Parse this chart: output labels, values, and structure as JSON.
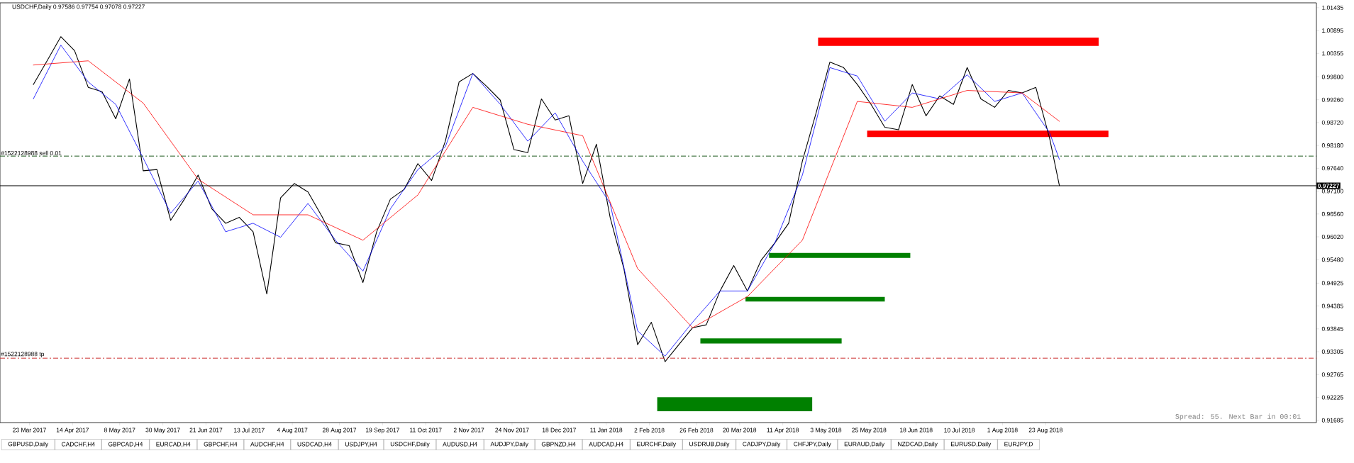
{
  "chart_data": {
    "type": "line",
    "title": "USDCHF,Daily  0.97586 0.97754 0.97078 0.97227",
    "xlim": [
      "2017-03-08",
      "2019-01-08"
    ],
    "xticks": [
      {
        "value": "2017-03-23",
        "label": "23 Mar 2017"
      },
      {
        "value": "2017-04-14",
        "label": "14 Apr 2017"
      },
      {
        "value": "2017-05-08",
        "label": "8 May 2017"
      },
      {
        "value": "2017-05-30",
        "label": "30 May 2017"
      },
      {
        "value": "2017-06-21",
        "label": "21 Jun 2017"
      },
      {
        "value": "2017-07-13",
        "label": "13 Jul 2017"
      },
      {
        "value": "2017-08-04",
        "label": "4 Aug 2017"
      },
      {
        "value": "2017-08-28",
        "label": "28 Aug 2017"
      },
      {
        "value": "2017-09-19",
        "label": "19 Sep 2017"
      },
      {
        "value": "2017-10-11",
        "label": "11 Oct 2017"
      },
      {
        "value": "2017-11-02",
        "label": "2 Nov 2017"
      },
      {
        "value": "2017-11-24",
        "label": "24 Nov 2017"
      },
      {
        "value": "2017-12-18",
        "label": "18 Dec 2017"
      },
      {
        "value": "2018-01-11",
        "label": "11 Jan 2018"
      },
      {
        "value": "2018-02-02",
        "label": "2 Feb 2018"
      },
      {
        "value": "2018-02-26",
        "label": "26 Feb 2018"
      },
      {
        "value": "2018-03-20",
        "label": "20 Mar 2018"
      },
      {
        "value": "2018-04-11",
        "label": "11 Apr 2018"
      },
      {
        "value": "2018-05-03",
        "label": "3 May 2018"
      },
      {
        "value": "2018-05-25",
        "label": "25 May 2018"
      },
      {
        "value": "2018-06-18",
        "label": "18 Jun 2018"
      },
      {
        "value": "2018-07-10",
        "label": "10 Jul 2018"
      },
      {
        "value": "2018-08-01",
        "label": "1 Aug 2018"
      },
      {
        "value": "2018-08-23",
        "label": "23 Aug 2018"
      }
    ],
    "ylim": [
      0.9163,
      1.0155
    ],
    "yticks": [
      1.01435,
      1.00895,
      1.00355,
      {
        "value": 0.998,
        "label": "0.99800"
      },
      {
        "value": 0.9926,
        "label": "0.99260"
      },
      {
        "value": 0.9872,
        "label": "0.98720"
      },
      {
        "value": 0.9818,
        "label": "0.98180"
      },
      {
        "value": 0.9764,
        "label": "0.97640"
      },
      {
        "value": 0.971,
        "label": "0.97100"
      },
      {
        "value": 0.9656,
        "label": "0.96560"
      },
      {
        "value": 0.9602,
        "label": "0.96020"
      },
      {
        "value": 0.9548,
        "label": "0.95480"
      },
      0.94925,
      0.94385,
      0.93845,
      0.93305,
      0.92765,
      0.92225,
      0.91685
    ],
    "series": [
      {
        "color": "#000000",
        "x": [
          "2017-03-25",
          "2017-04-01",
          "2017-04-08",
          "2017-04-15",
          "2017-04-22",
          "2017-04-29",
          "2017-05-06",
          "2017-05-13",
          "2017-05-20",
          "2017-05-27",
          "2017-06-03",
          "2017-06-10",
          "2017-06-17",
          "2017-06-24",
          "2017-07-01",
          "2017-07-08",
          "2017-07-15",
          "2017-07-22",
          "2017-07-29",
          "2017-08-05",
          "2017-08-12",
          "2017-08-19",
          "2017-08-26",
          "2017-09-02",
          "2017-09-09",
          "2017-09-16",
          "2017-09-23",
          "2017-09-30",
          "2017-10-07",
          "2017-10-14",
          "2017-10-21",
          "2017-10-28",
          "2017-11-04",
          "2017-11-11",
          "2017-11-18",
          "2017-11-25",
          "2017-12-02",
          "2017-12-09",
          "2017-12-16",
          "2017-12-23",
          "2017-12-30",
          "2018-01-06",
          "2018-01-13",
          "2018-01-20",
          "2018-01-27",
          "2018-02-03",
          "2018-02-10",
          "2018-02-17",
          "2018-02-24",
          "2018-03-03",
          "2018-03-10",
          "2018-03-17",
          "2018-03-24",
          "2018-03-31",
          "2018-04-07",
          "2018-04-14",
          "2018-04-21",
          "2018-04-28",
          "2018-05-05",
          "2018-05-12",
          "2018-05-19",
          "2018-05-26",
          "2018-06-02",
          "2018-06-09",
          "2018-06-16",
          "2018-06-23",
          "2018-06-30",
          "2018-07-07",
          "2018-07-14",
          "2018-07-21",
          "2018-07-28",
          "2018-08-04",
          "2018-08-11",
          "2018-08-18",
          "2018-08-25",
          "2018-08-30"
        ],
        "values": [
          0.9962,
          1.0018,
          1.0075,
          1.0042,
          0.9955,
          0.9945,
          0.9881,
          0.9975,
          0.9758,
          0.9761,
          0.9641,
          0.9691,
          0.9748,
          0.9668,
          0.9634,
          0.9648,
          0.9614,
          0.9467,
          0.9694,
          0.9728,
          0.9708,
          0.9651,
          0.9588,
          0.9581,
          0.9494,
          0.9614,
          0.9691,
          0.9714,
          0.9775,
          0.9735,
          0.9828,
          0.9968,
          0.9988,
          0.9958,
          0.9925,
          0.9808,
          0.9801,
          0.9928,
          0.9878,
          0.9888,
          0.9728,
          0.9821,
          0.9648,
          0.9527,
          0.9347,
          0.94,
          0.9307,
          0.9347,
          0.9387,
          0.9394,
          0.9474,
          0.9534,
          0.9474,
          0.9547,
          0.9588,
          0.9634,
          0.9781,
          0.9895,
          1.0015,
          1.0002,
          0.9962,
          0.9915,
          0.9861,
          0.9855,
          0.9962,
          0.9888,
          0.9935,
          0.9915,
          1.0002,
          0.9928,
          0.9908,
          0.9948,
          0.9942,
          0.9955,
          0.9835,
          0.9723
        ]
      },
      {
        "color": "#0000ff",
        "x": [
          "2017-03-25",
          "2017-04-08",
          "2017-04-22",
          "2017-05-06",
          "2017-05-20",
          "2017-06-03",
          "2017-06-17",
          "2017-07-01",
          "2017-07-15",
          "2017-07-29",
          "2017-08-12",
          "2017-08-26",
          "2017-09-09",
          "2017-09-23",
          "2017-10-07",
          "2017-10-21",
          "2017-11-04",
          "2017-11-18",
          "2017-12-02",
          "2017-12-16",
          "2017-12-30",
          "2018-01-13",
          "2018-01-27",
          "2018-02-10",
          "2018-02-24",
          "2018-03-10",
          "2018-03-24",
          "2018-04-07",
          "2018-04-21",
          "2018-05-05",
          "2018-05-19",
          "2018-06-02",
          "2018-06-16",
          "2018-06-30",
          "2018-07-14",
          "2018-07-28",
          "2018-08-11",
          "2018-08-25",
          "2018-08-30"
        ],
        "values": [
          0.9928,
          1.0055,
          0.9968,
          0.9915,
          0.9788,
          0.9658,
          0.9734,
          0.9614,
          0.9634,
          0.9601,
          0.9681,
          0.9594,
          0.9521,
          0.9668,
          0.9761,
          0.9815,
          0.9988,
          0.9915,
          0.9828,
          0.9895,
          0.9781,
          0.9681,
          0.938,
          0.932,
          0.94,
          0.9474,
          0.9474,
          0.9588,
          0.9748,
          1.0002,
          0.9982,
          0.9875,
          0.9942,
          0.9928,
          0.9985,
          0.9922,
          0.9942,
          0.9848,
          0.9785
        ]
      },
      {
        "color": "#ff0000",
        "x": [
          "2017-03-25",
          "2017-04-22",
          "2017-05-20",
          "2017-06-17",
          "2017-07-15",
          "2017-08-12",
          "2017-09-09",
          "2017-10-07",
          "2017-11-04",
          "2017-12-02",
          "2017-12-30",
          "2018-01-27",
          "2018-02-24",
          "2018-03-24",
          "2018-04-21",
          "2018-05-19",
          "2018-06-16",
          "2018-07-14",
          "2018-08-11",
          "2018-08-30"
        ],
        "values": [
          1.0008,
          1.0018,
          0.9918,
          0.9738,
          0.9654,
          0.9654,
          0.9594,
          0.9701,
          0.9908,
          0.9868,
          0.9841,
          0.9527,
          0.9387,
          0.9461,
          0.9594,
          0.9922,
          0.9908,
          0.9948,
          0.9942,
          0.9875
        ]
      },
      {
        "color": "#ff0000",
        "x": [
          "2018-04-29",
          "2018-09-19"
        ],
        "values": [
          null,
          null
        ],
        "lower": [
          1.0053,
          1.0053
        ],
        "upper": [
          1.0073,
          1.0073
        ]
      },
      {
        "color": "#ff0000",
        "x": [
          "2018-05-24",
          "2018-09-24"
        ],
        "values": [
          null,
          null
        ],
        "lower": [
          0.9838,
          0.9838
        ],
        "upper": [
          0.9853,
          0.9853
        ]
      },
      {
        "color": "#008000",
        "x": [
          "2018-04-04",
          "2018-06-15"
        ],
        "values": [
          null,
          null
        ],
        "lower": [
          0.9552,
          0.9552
        ],
        "upper": [
          0.9564,
          0.9564
        ]
      },
      {
        "color": "#008000",
        "x": [
          "2018-03-23",
          "2018-06-02"
        ],
        "values": [
          null,
          null
        ],
        "lower": [
          0.9449,
          0.9449
        ],
        "upper": [
          0.946,
          0.946
        ]
      },
      {
        "color": "#008000",
        "x": [
          "2018-02-28",
          "2018-05-11"
        ],
        "values": [
          null,
          null
        ],
        "lower": [
          0.935,
          0.935
        ],
        "upper": [
          0.9362,
          0.9362
        ]
      },
      {
        "color": "#008000",
        "x": [
          "2018-02-06",
          "2018-04-26"
        ],
        "values": [
          null,
          null
        ],
        "lower": [
          0.919,
          0.919
        ],
        "upper": [
          0.9223,
          0.9223
        ]
      }
    ],
    "ref_lines": [
      {
        "axis": "y",
        "value": 0.97928,
        "label": "#1522128988 sell 0.01",
        "color": "#1e5a1e",
        "line_style": "dashdot"
      },
      {
        "axis": "y",
        "value": 0.93152,
        "label": "#1522128988 tp",
        "color": "#cc3333",
        "line_style": "dashdot"
      },
      {
        "axis": "y",
        "value": 0.97227,
        "color": "#000000",
        "line_style": "solid"
      }
    ],
    "annotations": [
      "0.97227",
      "Spread: 55. Next Bar in 00:01",
      "GBPUSD,Daily",
      "CADCHF,H4",
      "GBPCAD,H4",
      "EURCAD,H4",
      "GBPCHF,H4",
      "AUDCHF,H4",
      "USDCAD,H4",
      "USDJPY,H4",
      "USDCHF,Daily",
      "AUDUSD,H4",
      "AUDJPY,Daily",
      "GBPNZD,H4",
      "AUDCAD,H4",
      "EURCHF,Daily",
      "USDRUB,Daily",
      "CADJPY,Daily",
      "CHFJPY,Daily",
      "EURAUD,Daily",
      "NZDCAD,Daily",
      "EURUSD,Daily",
      "EURJPY,D"
    ],
    "grid": false,
    "marker": "none"
  }
}
